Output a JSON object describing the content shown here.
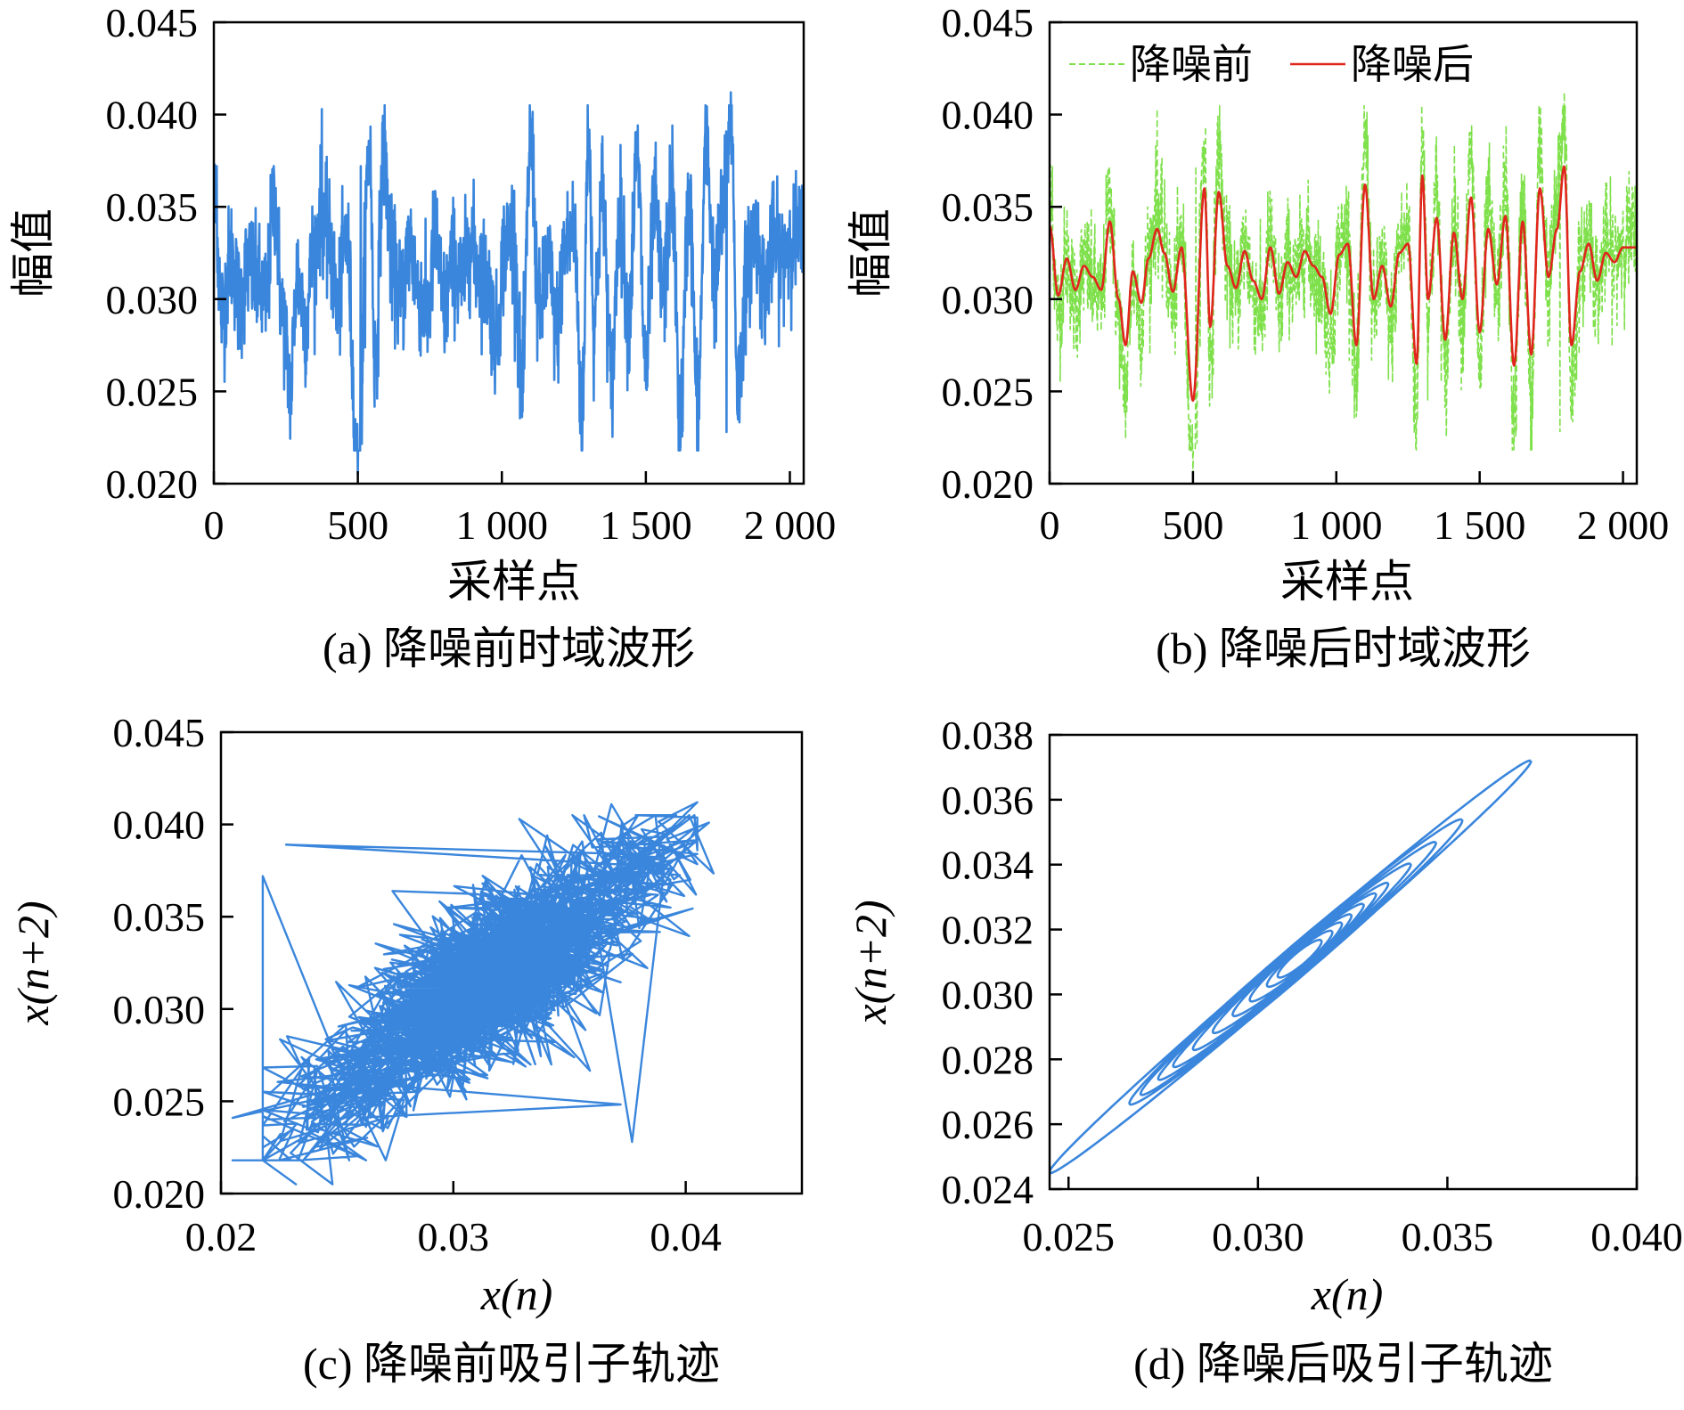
{
  "colors": {
    "blue": "#3a86dc",
    "green": "#7ee04a",
    "red": "#e0261c",
    "axis": "#000000"
  },
  "chart_data": [
    {
      "id": "a",
      "type": "line",
      "title": "",
      "caption": "(a) 降噪前时域波形",
      "xlabel": "采样点",
      "ylabel": "幅值",
      "xlim": [
        0,
        2048
      ],
      "ylim": [
        0.02,
        0.045
      ],
      "xticks": [
        0,
        500,
        1000,
        1500,
        2000
      ],
      "xtick_labels": [
        "0",
        "500",
        "1 000",
        "1 500",
        "2 000"
      ],
      "yticks": [
        0.02,
        0.025,
        0.03,
        0.035,
        0.04,
        0.045
      ],
      "ytick_labels": [
        "0.020",
        "0.025",
        "0.030",
        "0.035",
        "0.040",
        "0.045"
      ],
      "series": [
        {
          "name": "降噪前",
          "color": "#3a86dc",
          "style": "solid",
          "n_points": 2048,
          "mean": 0.0318,
          "std": 0.0024,
          "notable_points": [
            [
              10,
              0.0372
            ],
            [
              375,
              0.0403
            ],
            [
              500,
              0.0205
            ],
            [
              510,
              0.0372
            ],
            [
              1305,
              0.0378
            ],
            [
              1780,
              0.0228
            ],
            [
              1795,
              0.0412
            ]
          ]
        }
      ]
    },
    {
      "id": "b",
      "type": "line",
      "title": "",
      "caption": "(b) 降噪后时域波形",
      "xlabel": "采样点",
      "ylabel": "幅值",
      "xlim": [
        0,
        2048
      ],
      "ylim": [
        0.02,
        0.045
      ],
      "xticks": [
        0,
        500,
        1000,
        1500,
        2000
      ],
      "xtick_labels": [
        "0",
        "500",
        "1 000",
        "1 500",
        "2 000"
      ],
      "yticks": [
        0.02,
        0.025,
        0.03,
        0.035,
        0.04,
        0.045
      ],
      "ytick_labels": [
        "0.020",
        "0.025",
        "0.030",
        "0.035",
        "0.040",
        "0.045"
      ],
      "legend": {
        "position": "top",
        "entries": [
          "降噪前",
          "降噪后"
        ]
      },
      "series": [
        {
          "name": "降噪前",
          "color": "#7ee04a",
          "style": "dashed",
          "n_points": 2048,
          "mean": 0.0318,
          "std": 0.0024
        },
        {
          "name": "降噪后",
          "color": "#e0261c",
          "style": "solid",
          "n_points": 2048,
          "x": [
            0,
            30,
            60,
            90,
            120,
            150,
            180,
            210,
            240,
            265,
            290,
            320,
            345,
            375,
            400,
            430,
            460,
            500,
            540,
            560,
            590,
            620,
            650,
            680,
            710,
            740,
            770,
            800,
            830,
            860,
            890,
            920,
            950,
            980,
            1010,
            1040,
            1070,
            1100,
            1130,
            1160,
            1190,
            1220,
            1250,
            1280,
            1300,
            1320,
            1350,
            1380,
            1410,
            1440,
            1470,
            1500,
            1530,
            1560,
            1590,
            1620,
            1650,
            1680,
            1710,
            1740,
            1770,
            1795,
            1820,
            1850,
            1880,
            1910,
            1940,
            1970,
            2000,
            2048
          ],
          "y": [
            0.034,
            0.0302,
            0.0322,
            0.0305,
            0.0318,
            0.0312,
            0.0305,
            0.0342,
            0.03,
            0.0275,
            0.0315,
            0.0298,
            0.0322,
            0.0338,
            0.0325,
            0.0304,
            0.0328,
            0.0245,
            0.036,
            0.0285,
            0.0358,
            0.0318,
            0.0306,
            0.0326,
            0.031,
            0.03,
            0.0328,
            0.0303,
            0.032,
            0.0312,
            0.0326,
            0.0318,
            0.0312,
            0.0292,
            0.0324,
            0.033,
            0.0275,
            0.0362,
            0.03,
            0.0318,
            0.0296,
            0.0325,
            0.033,
            0.0265,
            0.0367,
            0.03,
            0.0344,
            0.0278,
            0.0336,
            0.03,
            0.0355,
            0.0282,
            0.0338,
            0.0308,
            0.0345,
            0.0264,
            0.0342,
            0.027,
            0.036,
            0.0312,
            0.0338,
            0.0372,
            0.0275,
            0.0315,
            0.033,
            0.031,
            0.0325,
            0.032,
            0.0328,
            0.0328
          ]
        }
      ]
    },
    {
      "id": "c",
      "type": "line",
      "title": "",
      "caption": "(c) 降噪前吸引子轨迹",
      "xlabel": "x(n)",
      "ylabel": "x(n+2)",
      "xlim": [
        0.02,
        0.045
      ],
      "ylim": [
        0.02,
        0.045
      ],
      "xticks": [
        0.02,
        0.03,
        0.04
      ],
      "xtick_labels": [
        "0.02",
        "0.03",
        "0.04"
      ],
      "yticks": [
        0.02,
        0.025,
        0.03,
        0.035,
        0.04,
        0.045
      ],
      "ytick_labels": [
        "0.020",
        "0.025",
        "0.030",
        "0.035",
        "0.040",
        "0.045"
      ],
      "series": [
        {
          "name": "降噪前吸引子",
          "color": "#3a86dc",
          "style": "solid",
          "center": [
            0.0318,
            0.0318
          ],
          "spread": [
            0.0028,
            0.0028
          ],
          "correlation": 0.55,
          "notable_points": [
            [
              0.0205,
              0.0241
            ],
            [
              0.0248,
              0.0205
            ],
            [
              0.0368,
              0.0411
            ],
            [
              0.041,
              0.0401
            ],
            [
              0.0402,
              0.037
            ]
          ]
        }
      ]
    },
    {
      "id": "d",
      "type": "line",
      "title": "",
      "caption": "(d) 降噪后吸引子轨迹",
      "xlabel": "x(n)",
      "ylabel": "x(n+2)",
      "xlim": [
        0.0245,
        0.04
      ],
      "ylim": [
        0.024,
        0.038
      ],
      "xticks": [
        0.025,
        0.03,
        0.035,
        0.04
      ],
      "xtick_labels": [
        "0.025",
        "0.030",
        "0.035",
        "0.040"
      ],
      "yticks": [
        0.024,
        0.026,
        0.028,
        0.03,
        0.032,
        0.034,
        0.036,
        0.038
      ],
      "ytick_labels": [
        "0.024",
        "0.026",
        "0.028",
        "0.030",
        "0.032",
        "0.034",
        "0.036",
        "0.038"
      ],
      "series": [
        {
          "name": "降噪后吸引子",
          "color": "#3a86dc",
          "style": "solid",
          "center": [
            0.031,
            0.031
          ],
          "extent": [
            0.0245,
            0.0372
          ],
          "minor_width": 0.0004
        }
      ]
    }
  ]
}
